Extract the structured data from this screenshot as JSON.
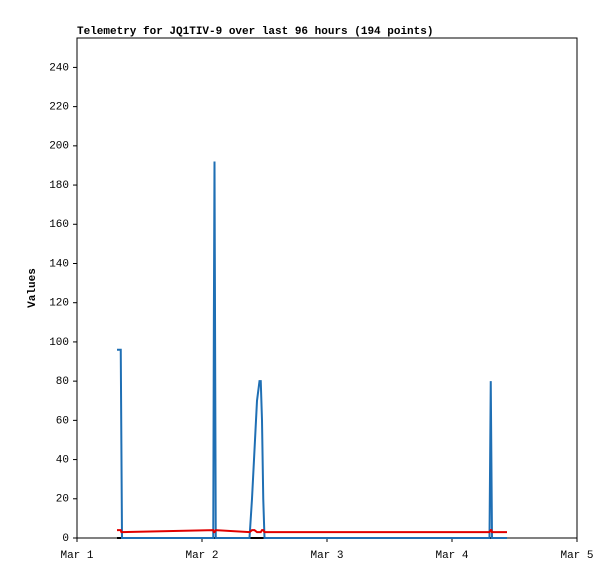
{
  "chart_data": {
    "type": "line",
    "title": "Telemetry for JQ1TIV-9 over last 96 hours (194 points)",
    "y_label": "Values",
    "x": [
      0.32,
      0.35,
      0.355,
      0.36,
      1.09,
      1.095,
      1.1,
      1.11,
      1.38,
      1.4,
      1.42,
      1.44,
      1.46,
      1.47,
      1.48,
      1.49,
      1.5,
      1.51,
      3.3,
      3.31,
      3.315,
      3.32,
      3.44
    ],
    "series": [
      {
        "color": "#000000",
        "values": [
          0,
          0,
          0,
          0,
          0,
          0,
          0,
          0,
          0,
          0,
          0,
          0,
          0,
          0,
          0,
          0,
          0,
          0,
          0,
          0,
          0,
          0,
          0
        ]
      },
      {
        "color": "#1f6fb4",
        "values": [
          96,
          96,
          48,
          0,
          0,
          112,
          192,
          0,
          0,
          20,
          45,
          70,
          80,
          80,
          60,
          20,
          0,
          0,
          0,
          80,
          40,
          0,
          0
        ]
      },
      {
        "color": "#e00000",
        "values": [
          4,
          4,
          3,
          3,
          4,
          3,
          3,
          4,
          3,
          4,
          4,
          3,
          3,
          3,
          4,
          4,
          3,
          3,
          3,
          4,
          4,
          3,
          3
        ]
      }
    ],
    "xlim": [
      0,
      4
    ],
    "xticks": [
      {
        "value": 0,
        "label": "Mar 1"
      },
      {
        "value": 1,
        "label": "Mar 2"
      },
      {
        "value": 2,
        "label": "Mar 3"
      },
      {
        "value": 3,
        "label": "Mar 4"
      },
      {
        "value": 4,
        "label": "Mar 5"
      }
    ],
    "ylim": [
      0,
      255
    ],
    "yticks": [
      0,
      20,
      40,
      60,
      80,
      100,
      120,
      140,
      160,
      180,
      200,
      220,
      240
    ],
    "grid": false
  }
}
